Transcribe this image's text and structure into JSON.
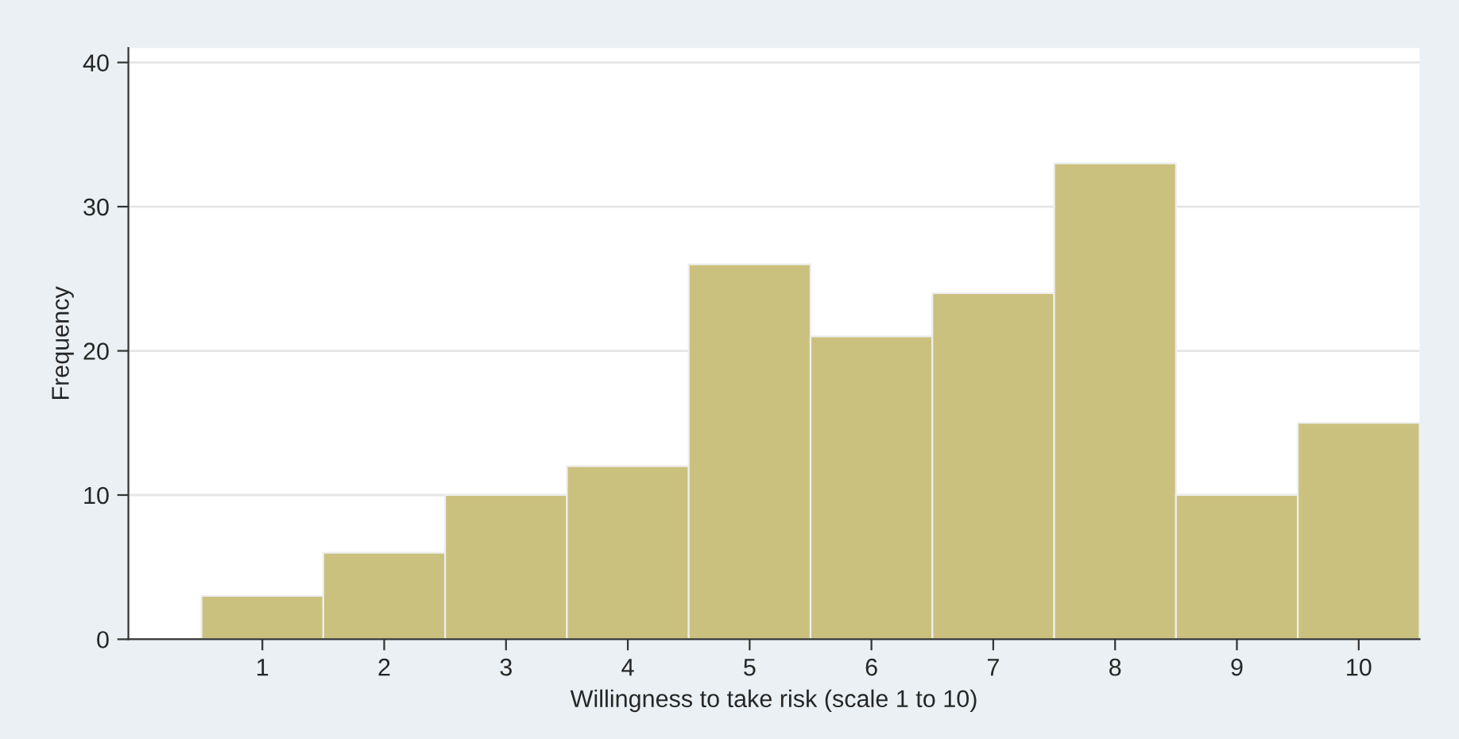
{
  "chart_data": {
    "type": "histogram",
    "xlabel": "Willingness to take risk (scale 1 to 10)",
    "ylabel": "Frequency",
    "bins": [
      0.5,
      1.5,
      2.5,
      3.5,
      4.5,
      5.5,
      6.5,
      7.5,
      8.5,
      9.5,
      10.5
    ],
    "values": [
      3,
      6,
      10,
      12,
      26,
      21,
      24,
      33,
      10,
      15
    ],
    "color": "#cbc17f",
    "xlim": [
      -0.1,
      10.5
    ],
    "xticks": [
      1,
      2,
      3,
      4,
      5,
      6,
      7,
      8,
      9,
      10
    ],
    "ylim": [
      0,
      41
    ],
    "yticks": [
      0,
      10,
      20,
      30,
      40
    ],
    "grid": "y"
  }
}
